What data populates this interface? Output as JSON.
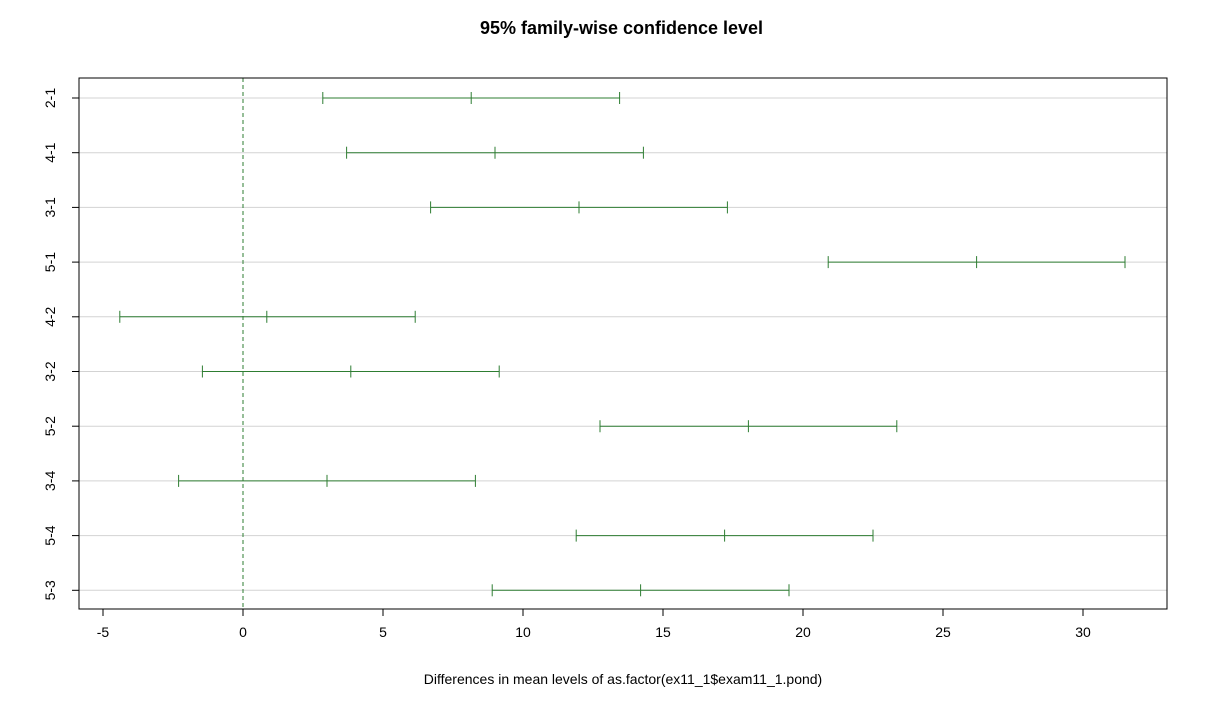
{
  "chart_data": {
    "type": "interval",
    "title": "95% family-wise confidence level",
    "xlabel": "Differences in mean levels of as.factor(ex11_1$exam11_1.pond)",
    "ylabel": "",
    "xlim": [
      -6,
      31.5
    ],
    "xticks": [
      -5,
      0,
      5,
      10,
      15,
      20,
      25,
      30
    ],
    "reference_line": 0,
    "grid": "horizontal",
    "line_color": "#2e7d32",
    "grid_color": "#d3d3d3",
    "comparisons": [
      {
        "label": "2-1",
        "lwr": 2.85,
        "diff": 8.15,
        "upr": 13.45
      },
      {
        "label": "4-1",
        "lwr": 3.7,
        "diff": 9.0,
        "upr": 14.3
      },
      {
        "label": "3-1",
        "lwr": 6.7,
        "diff": 12.0,
        "upr": 17.3
      },
      {
        "label": "5-1",
        "lwr": 20.9,
        "diff": 26.2,
        "upr": 31.5
      },
      {
        "label": "4-2",
        "lwr": -4.4,
        "diff": 0.85,
        "upr": 6.15
      },
      {
        "label": "3-2",
        "lwr": -1.45,
        "diff": 3.85,
        "upr": 9.15
      },
      {
        "label": "5-2",
        "lwr": 12.75,
        "diff": 18.05,
        "upr": 23.35
      },
      {
        "label": "3-4",
        "lwr": -2.3,
        "diff": 3.0,
        "upr": 8.3
      },
      {
        "label": "5-4",
        "lwr": 11.9,
        "diff": 17.2,
        "upr": 22.5
      },
      {
        "label": "5-3",
        "lwr": 8.9,
        "diff": 14.2,
        "upr": 19.5
      }
    ]
  }
}
